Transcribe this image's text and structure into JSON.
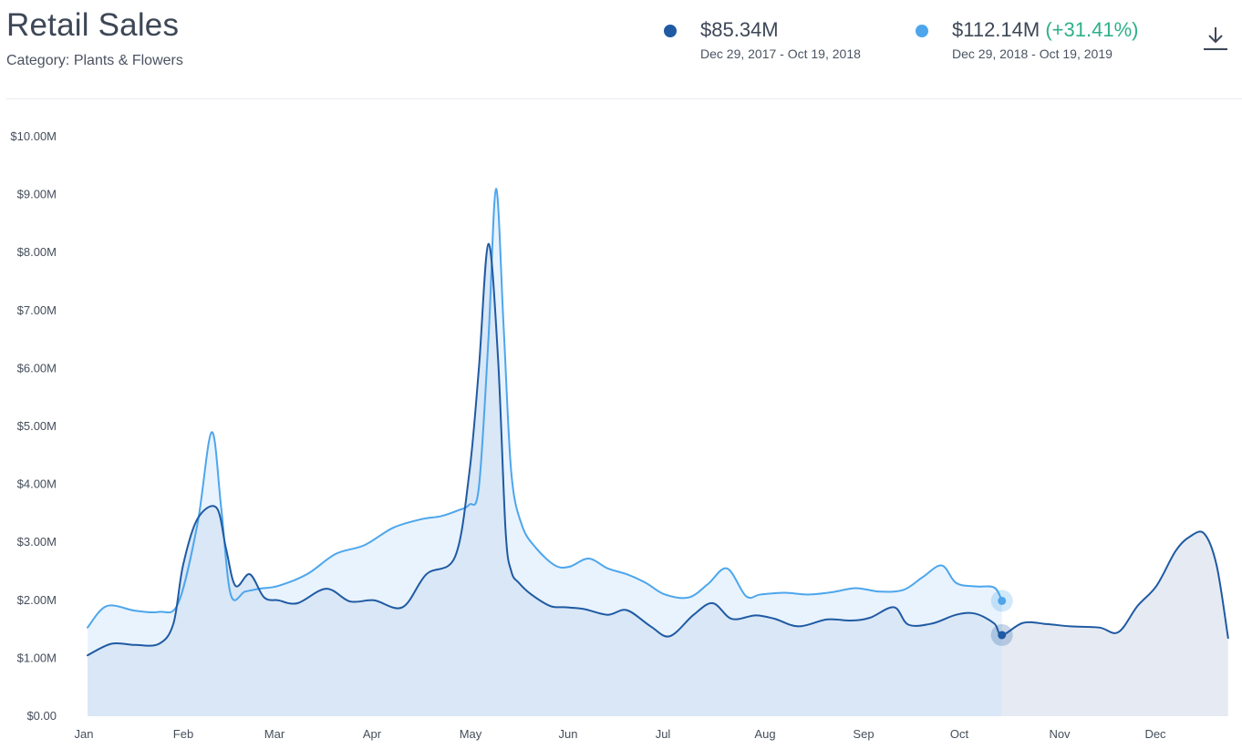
{
  "header": {
    "title": "Retail Sales",
    "subtitle": "Category: Plants & Flowers"
  },
  "legend": [
    {
      "value": "$85.34M",
      "change": "",
      "range": "Dec 29, 2017 - Oct 19, 2018",
      "color": "#1f5aa3"
    },
    {
      "value": "$112.14M",
      "change": "(+31.41%)",
      "range": "Dec 29, 2018 - Oct 19, 2019",
      "color": "#4da6ec"
    }
  ],
  "download": {
    "icon": "download-icon"
  },
  "chart_data": {
    "type": "area",
    "y_tick_labels": [
      "$0.00",
      "$1.00M",
      "$2.00M",
      "$3.00M",
      "$4.00M",
      "$5.00M",
      "$6.00M",
      "$7.00M",
      "$8.00M",
      "$9.00M",
      "$10.00M"
    ],
    "x_tick_labels": [
      "Jan",
      "Feb",
      "Mar",
      "Apr",
      "May",
      "Jun",
      "Jul",
      "Aug",
      "Sep",
      "Oct",
      "Nov",
      "Dec"
    ],
    "ylim": [
      0,
      10000000
    ],
    "xlim": [
      0,
      12
    ],
    "x_unit": "months from Jan 1",
    "grid": false,
    "series": [
      {
        "name": "Dec 29, 2017 - Oct 19, 2018",
        "color": "#1f5aa3",
        "fill": "#d9e7f6",
        "fill_after_end": "#e6ebf3",
        "end_marker_x": 9.58,
        "x": [
          0,
          0.25,
          0.5,
          0.75,
          0.9,
          1.0,
          1.15,
          1.35,
          1.45,
          1.55,
          1.7,
          1.85,
          2.0,
          2.2,
          2.5,
          2.75,
          3.0,
          3.3,
          3.55,
          3.85,
          4.0,
          4.1,
          4.2,
          4.3,
          4.38,
          4.44,
          4.52,
          4.65,
          4.85,
          5.0,
          5.2,
          5.45,
          5.65,
          5.9,
          6.1,
          6.35,
          6.55,
          6.75,
          7.0,
          7.2,
          7.45,
          7.75,
          8.0,
          8.2,
          8.45,
          8.6,
          8.85,
          9.1,
          9.3,
          9.5,
          9.58,
          9.8,
          10.05,
          10.3,
          10.6,
          10.8,
          11.0,
          11.2,
          11.4,
          11.55,
          11.7,
          11.83,
          11.95
        ],
        "values": [
          1050000,
          1250000,
          1230000,
          1250000,
          1600000,
          2600000,
          3400000,
          3600000,
          2900000,
          2250000,
          2450000,
          2050000,
          2000000,
          1950000,
          2200000,
          1980000,
          2000000,
          1880000,
          2450000,
          2750000,
          4200000,
          6000000,
          8150000,
          6200000,
          3200000,
          2500000,
          2300000,
          2100000,
          1900000,
          1880000,
          1850000,
          1750000,
          1830000,
          1550000,
          1380000,
          1750000,
          1950000,
          1680000,
          1740000,
          1680000,
          1550000,
          1670000,
          1650000,
          1700000,
          1880000,
          1580000,
          1600000,
          1750000,
          1770000,
          1600000,
          1400000,
          1610000,
          1590000,
          1550000,
          1530000,
          1450000,
          1900000,
          2250000,
          2850000,
          3100000,
          3150000,
          2600000,
          1350000
        ]
      },
      {
        "name": "Dec 29, 2018 - Oct 19, 2019",
        "color": "#4da6ec",
        "fill": "#e9f3fd",
        "end_marker_x": 9.58,
        "x": [
          0,
          0.2,
          0.5,
          0.75,
          0.95,
          1.15,
          1.3,
          1.4,
          1.5,
          1.65,
          1.8,
          2.0,
          2.3,
          2.6,
          2.9,
          3.2,
          3.5,
          3.7,
          3.88,
          4.0,
          4.1,
          4.2,
          4.28,
          4.36,
          4.44,
          4.55,
          4.7,
          4.9,
          5.05,
          5.25,
          5.45,
          5.65,
          5.85,
          6.05,
          6.3,
          6.5,
          6.7,
          6.9,
          7.05,
          7.3,
          7.55,
          7.8,
          8.05,
          8.3,
          8.55,
          8.75,
          8.95,
          9.1,
          9.3,
          9.5,
          9.58
        ],
        "values": [
          1530000,
          1900000,
          1820000,
          1800000,
          1950000,
          3300000,
          4900000,
          3600000,
          2100000,
          2150000,
          2200000,
          2250000,
          2450000,
          2800000,
          2950000,
          3250000,
          3400000,
          3450000,
          3550000,
          3650000,
          3950000,
          6500000,
          9100000,
          6700000,
          4200000,
          3300000,
          2900000,
          2600000,
          2580000,
          2720000,
          2550000,
          2450000,
          2300000,
          2100000,
          2050000,
          2280000,
          2550000,
          2070000,
          2100000,
          2130000,
          2100000,
          2140000,
          2210000,
          2150000,
          2180000,
          2400000,
          2600000,
          2300000,
          2240000,
          2220000,
          1990000
        ]
      }
    ]
  }
}
